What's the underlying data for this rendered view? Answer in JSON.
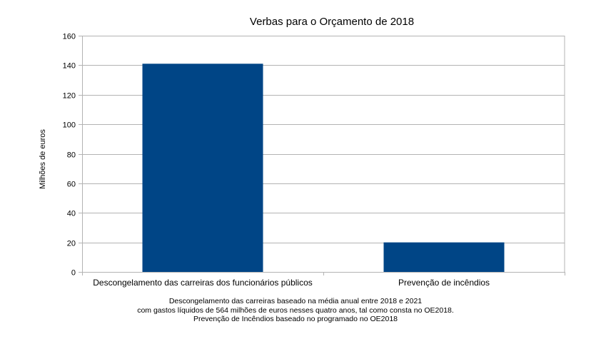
{
  "chart_data": {
    "type": "bar",
    "title": "Verbas para o Orçamento de 2018",
    "xlabel": "",
    "ylabel": "Milhões de euros",
    "categories": [
      "Descongelamento das carreiras dos funcionários públicos",
      "Prevenção de incêndios"
    ],
    "values": [
      141,
      20
    ],
    "ylim": [
      0,
      160
    ],
    "yticks": [
      0,
      20,
      40,
      60,
      80,
      100,
      120,
      140,
      160
    ],
    "grid": true,
    "legend": "none",
    "bar_color": "#004586"
  },
  "footnotes": [
    "Descongelamento das carreiras baseado na média anual entre 2018 e 2021",
    "com gastos líquidos de 564 milhões de euros nesses quatro anos, tal como consta no OE2018.",
    "Prevenção de Incêndios baseado no programado no OE2018"
  ]
}
